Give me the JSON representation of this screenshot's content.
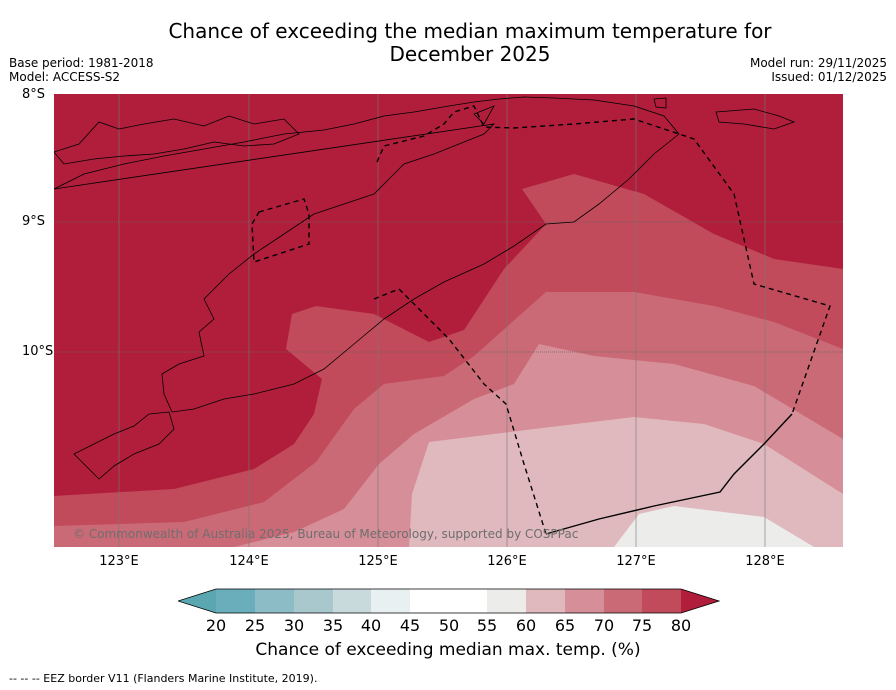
{
  "title": {
    "line1": "Chance of exceeding the median maximum temperature for",
    "line2": "December 2025"
  },
  "meta": {
    "base_period": "Base period: 1981-2018",
    "model": "Model: ACCESS-S2",
    "model_run": "Model run: 29/11/2025",
    "issued": "Issued: 01/12/2025"
  },
  "map": {
    "lat_labels": [
      "8°S",
      "9°S",
      "10°S"
    ],
    "lon_labels": [
      "123°E",
      "124°E",
      "125°E",
      "126°E",
      "127°E",
      "128°E"
    ],
    "copyright": "© Commonwealth of Australia 2025, Bureau of Meteorology, supported by COSPPac"
  },
  "legend": {
    "ticks": [
      "20",
      "25",
      "30",
      "35",
      "40",
      "45",
      "50",
      "55",
      "60",
      "65",
      "70",
      "75",
      "80"
    ],
    "colors": {
      "below_20": "#5aa6b1",
      "20_25": "#6aaebb",
      "25_30": "#8cbcc6",
      "30_35": "#a8c8cd",
      "35_40": "#c9dadd",
      "40_45": "#e9f0f2",
      "45_50": "#ffffff",
      "50_55": "#ffffff",
      "55_60": "#ececea",
      "60_65": "#e0b9be",
      "65_70": "#d68e98",
      "70_75": "#cb6a77",
      "75_80": "#c14b5a",
      "above_80": "#b01e3b"
    },
    "label": "Chance of exceeding median max. temp. (%)"
  },
  "footer": {
    "eez_note": "--  --  -- EEZ border V11 (Flanders Marine Institute, 2019)."
  }
}
